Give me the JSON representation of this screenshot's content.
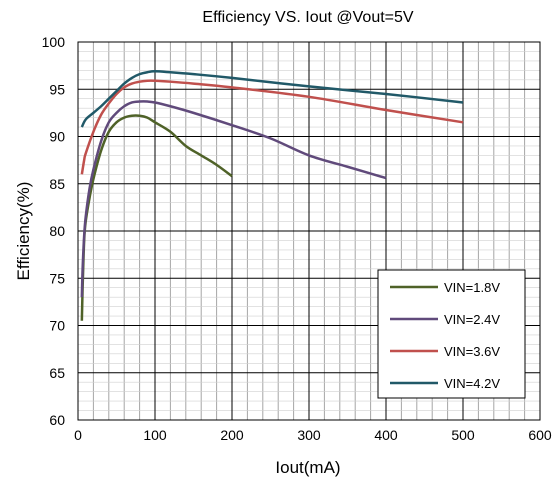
{
  "chart_data": {
    "type": "line",
    "title": "Efficiency VS. Iout @Vout=5V",
    "xlabel": "Iout(mA)",
    "ylabel": "Efficiency(%)",
    "xlim": [
      0,
      600
    ],
    "ylim": [
      60,
      100
    ],
    "xticks": [
      0,
      100,
      200,
      300,
      400,
      500,
      600
    ],
    "yticks": [
      60,
      65,
      70,
      75,
      80,
      85,
      90,
      95,
      100
    ],
    "x_minor_step": 20,
    "y_minor_step": 1,
    "grid": true,
    "legend_position": "bottom-right",
    "series": [
      {
        "name": "VIN=1.8V",
        "color": "#4f6228",
        "points": [
          [
            5,
            70.5
          ],
          [
            6,
            74
          ],
          [
            8,
            79
          ],
          [
            10,
            81
          ],
          [
            15,
            83.5
          ],
          [
            20,
            85.5
          ],
          [
            30,
            88.5
          ],
          [
            40,
            90.5
          ],
          [
            50,
            91.5
          ],
          [
            60,
            92
          ],
          [
            70,
            92.2
          ],
          [
            80,
            92.2
          ],
          [
            90,
            92
          ],
          [
            100,
            91.5
          ],
          [
            120,
            90.5
          ],
          [
            140,
            89
          ],
          [
            160,
            88
          ],
          [
            180,
            87
          ],
          [
            200,
            85.8
          ]
        ]
      },
      {
        "name": "VIN=2.4V",
        "color": "#604a7b",
        "points": [
          [
            5,
            73
          ],
          [
            6,
            76
          ],
          [
            8,
            79.5
          ],
          [
            10,
            81.5
          ],
          [
            15,
            84.5
          ],
          [
            20,
            86.5
          ],
          [
            30,
            89.5
          ],
          [
            40,
            91.5
          ],
          [
            50,
            92.5
          ],
          [
            60,
            93.2
          ],
          [
            70,
            93.6
          ],
          [
            80,
            93.7
          ],
          [
            90,
            93.7
          ],
          [
            100,
            93.6
          ],
          [
            120,
            93.2
          ],
          [
            150,
            92.5
          ],
          [
            200,
            91.2
          ],
          [
            250,
            89.8
          ],
          [
            300,
            88
          ],
          [
            350,
            86.8
          ],
          [
            400,
            85.6
          ]
        ]
      },
      {
        "name": "VIN=3.6V",
        "color": "#c0504d",
        "points": [
          [
            5,
            86
          ],
          [
            8,
            87.5
          ],
          [
            10,
            88.2
          ],
          [
            20,
            90.5
          ],
          [
            30,
            92.3
          ],
          [
            40,
            93.5
          ],
          [
            50,
            94.5
          ],
          [
            60,
            95.2
          ],
          [
            70,
            95.6
          ],
          [
            80,
            95.8
          ],
          [
            90,
            95.9
          ],
          [
            100,
            95.9
          ],
          [
            120,
            95.8
          ],
          [
            150,
            95.6
          ],
          [
            200,
            95.2
          ],
          [
            300,
            94.2
          ],
          [
            400,
            92.8
          ],
          [
            500,
            91.5
          ]
        ]
      },
      {
        "name": "VIN=4.2V",
        "color": "#215968",
        "points": [
          [
            5,
            91
          ],
          [
            10,
            91.8
          ],
          [
            20,
            92.5
          ],
          [
            30,
            93.2
          ],
          [
            40,
            94
          ],
          [
            50,
            94.8
          ],
          [
            60,
            95.6
          ],
          [
            70,
            96.2
          ],
          [
            80,
            96.6
          ],
          [
            90,
            96.8
          ],
          [
            100,
            96.9
          ],
          [
            120,
            96.8
          ],
          [
            150,
            96.6
          ],
          [
            200,
            96.2
          ],
          [
            300,
            95.3
          ],
          [
            400,
            94.5
          ],
          [
            500,
            93.6
          ]
        ]
      }
    ]
  }
}
